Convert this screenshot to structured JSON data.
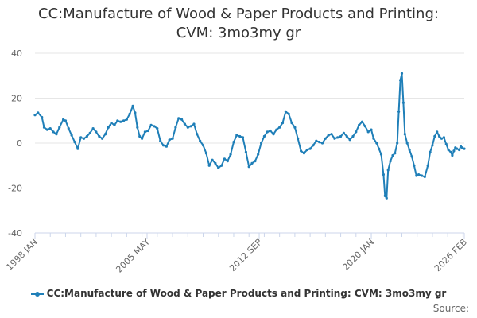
{
  "title_line1": "CC:Manufacture of Wood & Paper Products and Printing:",
  "title_line2": "CVM: 3mo3my gr",
  "source_label": "Source:",
  "colors": {
    "series": "#1f7fb8",
    "grid": "#e6e6e6",
    "axis": "#ccd6eb",
    "tick_text": "#666666",
    "title": "#333333"
  },
  "chart_data": {
    "type": "line",
    "title": "CC:Manufacture of Wood & Paper Products and Printing: CVM: 3mo3my gr",
    "xlabel": "",
    "ylabel": "",
    "ylim": [
      -40,
      40
    ],
    "yticks": [
      40,
      20,
      0,
      -20,
      -40
    ],
    "xlim": [
      1998.0,
      2026.083
    ],
    "xtick_labels": [
      {
        "label": "1998 JAN",
        "x": 1998.0
      },
      {
        "label": "2005 MAY",
        "x": 2005.333
      },
      {
        "label": "2012 SEP",
        "x": 2012.667
      },
      {
        "label": "2020 JAN",
        "x": 2020.0
      },
      {
        "label": "2026 FEB",
        "x": 2026.083
      }
    ],
    "grid": "horizontal",
    "legend_position": "bottom",
    "series": [
      {
        "name": "CC:Manufacture of Wood & Paper Products and Printing: CVM: 3mo3my gr",
        "points": [
          [
            1998.0,
            12.5
          ],
          [
            1998.2,
            13.5
          ],
          [
            1998.45,
            11.5
          ],
          [
            1998.6,
            7.0
          ],
          [
            1998.8,
            6.0
          ],
          [
            1999.0,
            6.5
          ],
          [
            1999.2,
            5.0
          ],
          [
            1999.4,
            4.0
          ],
          [
            1999.6,
            7.0
          ],
          [
            1999.85,
            10.5
          ],
          [
            2000.0,
            10.0
          ],
          [
            2000.2,
            6.5
          ],
          [
            2000.4,
            3.5
          ],
          [
            2000.6,
            0.5
          ],
          [
            2000.8,
            -2.5
          ],
          [
            2001.0,
            2.5
          ],
          [
            2001.2,
            2.0
          ],
          [
            2001.4,
            3.0
          ],
          [
            2001.6,
            4.5
          ],
          [
            2001.8,
            6.5
          ],
          [
            2002.0,
            5.0
          ],
          [
            2002.2,
            3.0
          ],
          [
            2002.4,
            2.0
          ],
          [
            2002.6,
            4.0
          ],
          [
            2002.8,
            7.0
          ],
          [
            2003.0,
            9.0
          ],
          [
            2003.2,
            8.0
          ],
          [
            2003.4,
            10.0
          ],
          [
            2003.6,
            9.5
          ],
          [
            2003.8,
            10.0
          ],
          [
            2004.0,
            10.5
          ],
          [
            2004.2,
            13.0
          ],
          [
            2004.4,
            16.5
          ],
          [
            2004.55,
            13.5
          ],
          [
            2004.7,
            7.0
          ],
          [
            2004.85,
            3.0
          ],
          [
            2005.0,
            2.0
          ],
          [
            2005.2,
            5.0
          ],
          [
            2005.4,
            5.5
          ],
          [
            2005.6,
            8.0
          ],
          [
            2005.8,
            7.5
          ],
          [
            2006.0,
            6.5
          ],
          [
            2006.2,
            1.0
          ],
          [
            2006.4,
            -1.0
          ],
          [
            2006.6,
            -1.5
          ],
          [
            2006.8,
            1.5
          ],
          [
            2007.0,
            2.0
          ],
          [
            2007.2,
            7.0
          ],
          [
            2007.4,
            11.0
          ],
          [
            2007.6,
            10.5
          ],
          [
            2007.8,
            8.5
          ],
          [
            2008.0,
            7.0
          ],
          [
            2008.2,
            7.5
          ],
          [
            2008.4,
            8.5
          ],
          [
            2008.6,
            4.0
          ],
          [
            2008.8,
            1.0
          ],
          [
            2009.0,
            -1.0
          ],
          [
            2009.2,
            -4.5
          ],
          [
            2009.4,
            -10.0
          ],
          [
            2009.6,
            -7.5
          ],
          [
            2009.8,
            -9.0
          ],
          [
            2010.0,
            -11.0
          ],
          [
            2010.2,
            -10.0
          ],
          [
            2010.4,
            -7.0
          ],
          [
            2010.6,
            -8.0
          ],
          [
            2010.8,
            -5.0
          ],
          [
            2011.0,
            0.5
          ],
          [
            2011.2,
            3.5
          ],
          [
            2011.4,
            3.0
          ],
          [
            2011.6,
            2.5
          ],
          [
            2011.8,
            -4.0
          ],
          [
            2012.0,
            -10.5
          ],
          [
            2012.2,
            -9.0
          ],
          [
            2012.4,
            -8.0
          ],
          [
            2012.6,
            -5.0
          ],
          [
            2012.8,
            0.0
          ],
          [
            2013.0,
            3.0
          ],
          [
            2013.2,
            5.0
          ],
          [
            2013.4,
            5.5
          ],
          [
            2013.6,
            4.0
          ],
          [
            2013.8,
            6.0
          ],
          [
            2014.0,
            7.0
          ],
          [
            2014.2,
            9.0
          ],
          [
            2014.4,
            14.0
          ],
          [
            2014.6,
            13.0
          ],
          [
            2014.8,
            9.0
          ],
          [
            2015.0,
            7.0
          ],
          [
            2015.2,
            2.0
          ],
          [
            2015.4,
            -3.5
          ],
          [
            2015.6,
            -4.5
          ],
          [
            2015.8,
            -3.0
          ],
          [
            2016.0,
            -2.5
          ],
          [
            2016.2,
            -1.0
          ],
          [
            2016.4,
            1.0
          ],
          [
            2016.6,
            0.5
          ],
          [
            2016.8,
            0.0
          ],
          [
            2017.0,
            2.0
          ],
          [
            2017.2,
            3.5
          ],
          [
            2017.4,
            4.0
          ],
          [
            2017.6,
            2.0
          ],
          [
            2017.8,
            2.5
          ],
          [
            2018.0,
            3.0
          ],
          [
            2018.2,
            4.5
          ],
          [
            2018.4,
            3.0
          ],
          [
            2018.6,
            1.5
          ],
          [
            2018.8,
            3.0
          ],
          [
            2019.0,
            5.0
          ],
          [
            2019.2,
            8.0
          ],
          [
            2019.4,
            9.5
          ],
          [
            2019.6,
            7.5
          ],
          [
            2019.8,
            5.0
          ],
          [
            2020.0,
            6.0
          ],
          [
            2020.15,
            2.0
          ],
          [
            2020.35,
            0.0
          ],
          [
            2020.5,
            -2.5
          ],
          [
            2020.65,
            -5.0
          ],
          [
            2020.8,
            -14.0
          ],
          [
            2020.9,
            -23.5
          ],
          [
            2021.0,
            -24.5
          ],
          [
            2021.1,
            -12.0
          ],
          [
            2021.25,
            -8.0
          ],
          [
            2021.4,
            -5.5
          ],
          [
            2021.55,
            -4.5
          ],
          [
            2021.7,
            0.0
          ],
          [
            2021.8,
            14.0
          ],
          [
            2021.9,
            28.0
          ],
          [
            2022.0,
            31.0
          ],
          [
            2022.1,
            18.0
          ],
          [
            2022.2,
            4.0
          ],
          [
            2022.35,
            0.0
          ],
          [
            2022.5,
            -3.0
          ],
          [
            2022.65,
            -6.0
          ],
          [
            2022.8,
            -10.0
          ],
          [
            2022.95,
            -14.5
          ],
          [
            2023.1,
            -14.0
          ],
          [
            2023.3,
            -14.5
          ],
          [
            2023.5,
            -15.0
          ],
          [
            2023.7,
            -10.0
          ],
          [
            2023.85,
            -4.0
          ],
          [
            2024.0,
            -1.0
          ],
          [
            2024.15,
            3.0
          ],
          [
            2024.3,
            5.0
          ],
          [
            2024.45,
            3.0
          ],
          [
            2024.6,
            2.0
          ],
          [
            2024.75,
            2.5
          ],
          [
            2024.9,
            -0.5
          ],
          [
            2025.05,
            -3.0
          ],
          [
            2025.2,
            -4.0
          ],
          [
            2025.3,
            -5.5
          ],
          [
            2025.4,
            -3.5
          ],
          [
            2025.5,
            -2.0
          ],
          [
            2025.6,
            -2.5
          ],
          [
            2025.75,
            -3.0
          ],
          [
            2025.85,
            -1.5
          ],
          [
            2025.95,
            -2.0
          ],
          [
            2026.083,
            -2.5
          ]
        ]
      }
    ]
  }
}
